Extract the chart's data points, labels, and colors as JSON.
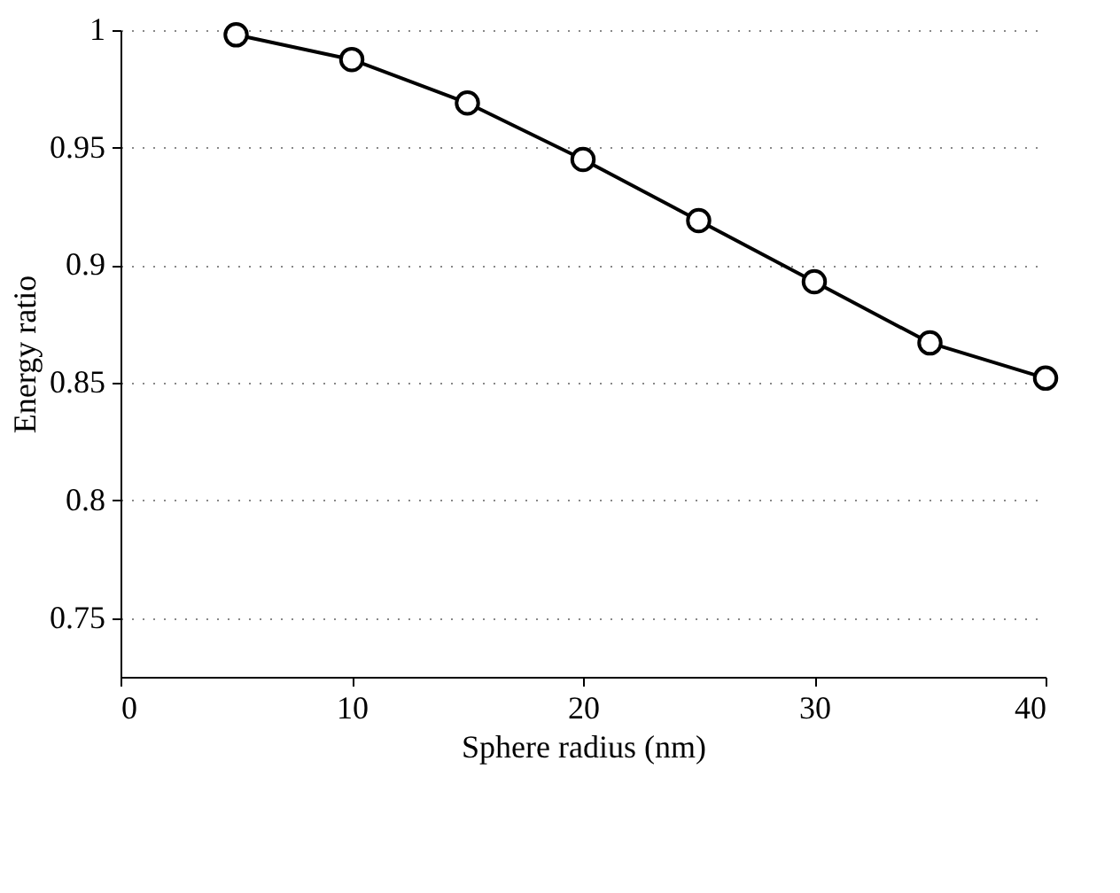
{
  "chart_data": {
    "type": "line",
    "xlabel": "Sphere radius (nm)",
    "ylabel": "Energy ratio",
    "x": [
      5,
      10,
      15,
      20,
      25,
      30,
      35,
      40
    ],
    "series": [
      {
        "color": "#000000",
        "values": [
          0.998,
          0.9875,
          0.969,
          0.945,
          0.919,
          0.893,
          0.867,
          0.852
        ]
      }
    ],
    "xlim": [
      0,
      40
    ],
    "xticks": [
      0,
      10,
      20,
      30,
      40
    ],
    "ylim": [
      0.725,
      1
    ],
    "yticks": [
      0.75,
      0.8,
      0.85,
      0.9,
      0.95,
      1
    ],
    "grid": "y",
    "marker": "circle",
    "line_style": "solid"
  }
}
